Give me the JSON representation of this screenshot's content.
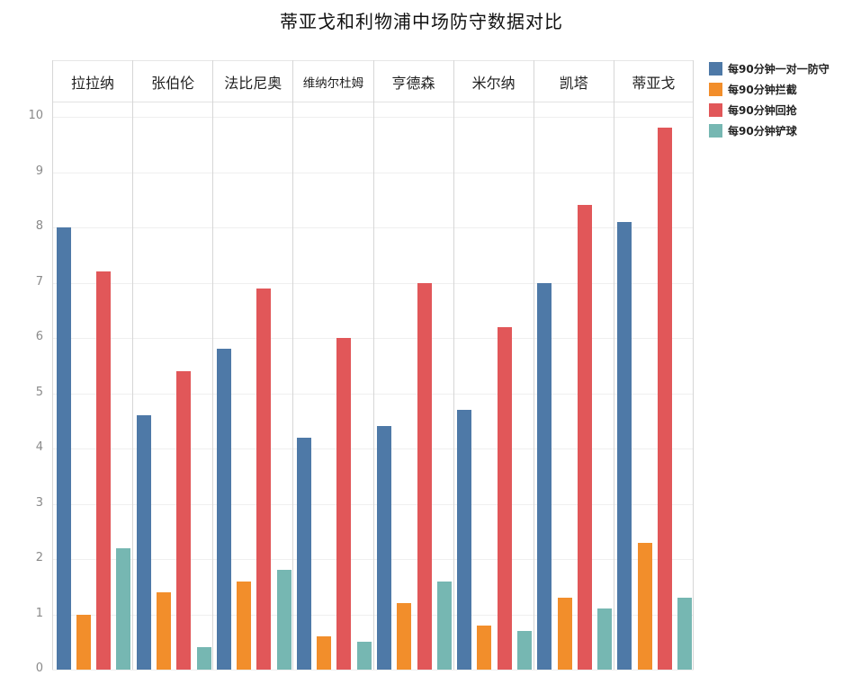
{
  "chart_data": {
    "type": "bar",
    "title": "蒂亚戈和利物浦中场防守数据对比",
    "xlabel": "",
    "ylabel": "",
    "ylim": [
      0,
      10
    ],
    "yticks": [
      0,
      1,
      2,
      3,
      4,
      5,
      6,
      7,
      8,
      9,
      10
    ],
    "grid": true,
    "legend_position": "right",
    "categories": [
      "拉拉纳",
      "张伯伦",
      "法比尼奥",
      "维纳尔杜姆",
      "亨德森",
      "米尔纳",
      "凯塔",
      "蒂亚戈"
    ],
    "series": [
      {
        "name": "每90分钟一对一防守",
        "color": "#4e79a7",
        "values": [
          8.0,
          4.6,
          5.8,
          4.2,
          4.4,
          4.7,
          7.0,
          8.1
        ]
      },
      {
        "name": "每90分钟拦截",
        "color": "#f28e2b",
        "values": [
          1.0,
          1.4,
          1.6,
          0.6,
          1.2,
          0.8,
          1.3,
          2.3
        ]
      },
      {
        "name": "每90分钟回抢",
        "color": "#e15759",
        "values": [
          7.2,
          5.4,
          6.9,
          6.0,
          7.0,
          6.2,
          8.4,
          9.8
        ]
      },
      {
        "name": "每90分钟铲球",
        "color": "#76b7b2",
        "values": [
          2.2,
          0.4,
          1.8,
          0.5,
          1.6,
          0.7,
          1.1,
          1.3
        ]
      }
    ]
  }
}
